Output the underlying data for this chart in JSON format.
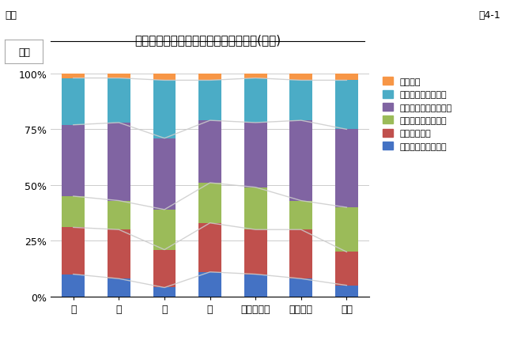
{
  "title": "内部被ばくの原因として気になる食材(現在)",
  "subtitle_left": "一般",
  "subtitle_right": "図4-1",
  "label_box": "大人",
  "categories": [
    "水",
    "米",
    "肉",
    "魚",
    "野菜・果物",
    "キノコ類",
    "牛乳"
  ],
  "series": {
    "とても気にしている": [
      10,
      8,
      4,
      11,
      10,
      8,
      5
    ],
    "気にしている": [
      21,
      22,
      17,
      22,
      20,
      22,
      15
    ],
    "どちらともいえない": [
      14,
      13,
      18,
      18,
      19,
      13,
      20
    ],
    "あまり気にしていない": [
      32,
      35,
      32,
      28,
      29,
      36,
      35
    ],
    "全く気にしていない": [
      21,
      20,
      26,
      18,
      20,
      18,
      22
    ],
    "回答なし": [
      2,
      2,
      3,
      3,
      2,
      3,
      3
    ]
  },
  "colors": {
    "とても気にしている": "#4472C4",
    "気にしている": "#C0504D",
    "どちらともいえない": "#9BBB59",
    "あまり気にしていない": "#8064A2",
    "全く気にしていない": "#4BACC6",
    "回答なし": "#F79646"
  },
  "line_series": [
    "とても気にしている",
    "気にしている",
    "どちらともいえない",
    "あまり気にしていない",
    "全く気にしていない"
  ],
  "ylim": [
    0,
    100
  ],
  "yticks": [
    0,
    25,
    50,
    75,
    100
  ],
  "ytick_labels": [
    "0%",
    "25%",
    "50%",
    "75%",
    "100%"
  ],
  "background_color": "#FFFFFF",
  "grid_color": "#CCCCCC",
  "line_color": "#CCCCCC"
}
